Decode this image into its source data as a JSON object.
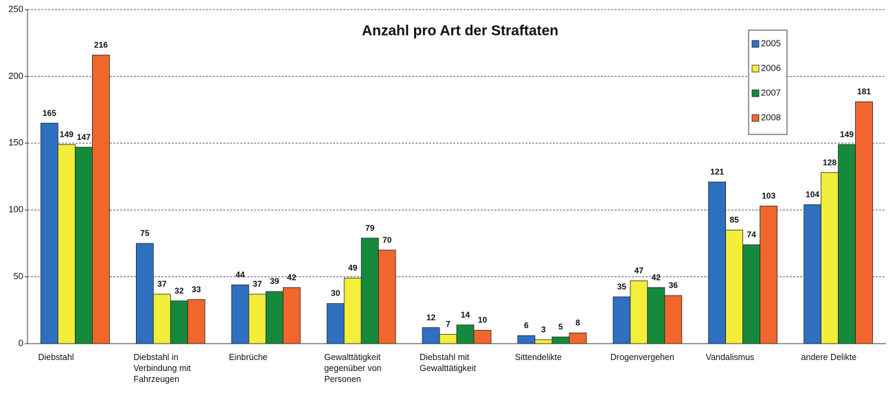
{
  "chart_data": {
    "type": "bar",
    "title": "Anzahl pro Art der Straftaten",
    "categories": [
      "Diebstahl",
      "Diebstahl in Verbindung mit Fahrzeugen",
      "Einbrüche",
      "Gewalttätigkeit gegenüber von Personen",
      "Diebstahl mit Gewalttätigkeit",
      "Sittendelikte",
      "Drogenvergehen",
      "Vandalismus",
      "andere Delikte"
    ],
    "series": [
      {
        "name": "2005",
        "color": "#2e6fc0",
        "values": [
          165,
          75,
          44,
          30,
          12,
          6,
          35,
          121,
          104
        ]
      },
      {
        "name": "2006",
        "color": "#f2ee3a",
        "values": [
          149,
          37,
          37,
          49,
          7,
          3,
          47,
          85,
          128
        ]
      },
      {
        "name": "2007",
        "color": "#168a3c",
        "values": [
          147,
          32,
          39,
          79,
          14,
          5,
          42,
          74,
          149
        ]
      },
      {
        "name": "2008",
        "color": "#f0662c",
        "values": [
          216,
          33,
          42,
          70,
          10,
          8,
          36,
          103,
          181
        ]
      }
    ],
    "ylim": [
      0,
      250
    ],
    "yticks": [
      0,
      50,
      100,
      150,
      200,
      250
    ],
    "grid": true,
    "legend": "upper right"
  }
}
